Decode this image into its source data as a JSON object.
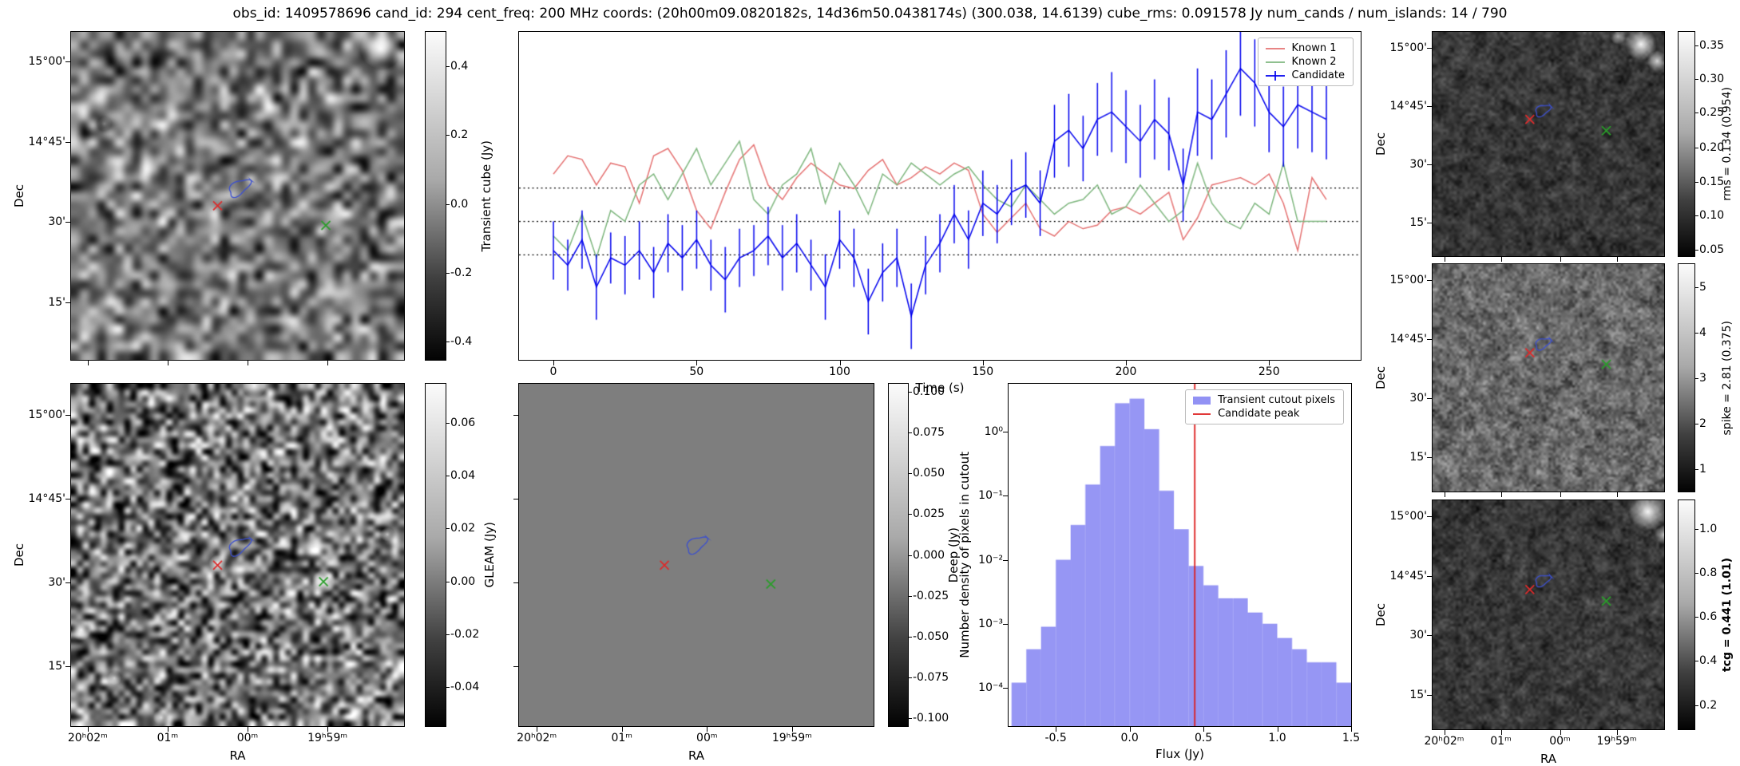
{
  "title": "obs_id: 1409578696 cand_id: 294 cent_freq: 200 MHz coords: (20h00m09.0820182s, 14d36m50.0438174s) (300.038, 14.6139) cube_rms: 0.091578 Jy num_cands / num_islands: 14 / 790",
  "axis": {
    "ra_label": "RA",
    "dec_label": "Dec",
    "ra_ticks": [
      "20ʰ02ᵐ",
      "01ᵐ",
      "00ᵐ",
      "19ʰ59ᵐ"
    ],
    "dec_ticks": [
      "15°00'",
      "14°45'",
      "30'",
      "15'"
    ]
  },
  "markers": {
    "red": "#dd2b2b",
    "green": "#2a9e2a",
    "contour": "#3b4fd0"
  },
  "colorbars": {
    "transient": {
      "label": "Transient cube (Jy)",
      "ticks": [
        "0.4",
        "0.2",
        "0.0",
        "-0.2",
        "-0.4"
      ]
    },
    "gleam": {
      "label": "GLEAM (Jy)",
      "ticks": [
        "0.06",
        "0.04",
        "0.02",
        "0.00",
        "-0.02",
        "-0.04"
      ]
    },
    "deep": {
      "label": "Deep (Jy)",
      "ticks": [
        "0.100",
        "0.075",
        "0.050",
        "0.025",
        "0.000",
        "-0.025",
        "-0.050",
        "-0.075",
        "-0.100"
      ]
    },
    "rms": {
      "label": "rms = 0.134 (0.954)",
      "ticks": [
        "0.35",
        "0.30",
        "0.25",
        "0.20",
        "0.15",
        "0.10",
        "0.05"
      ]
    },
    "spike": {
      "label": "spike = 2.81 (0.375)",
      "ticks": [
        "5",
        "4",
        "3",
        "2",
        "1"
      ]
    },
    "tcg": {
      "label": "tcg = 0.441 (1.01)",
      "ticks": [
        "1.0",
        "0.8",
        "0.6",
        "0.4",
        "0.2"
      ]
    }
  },
  "chart_data": [
    {
      "type": "line",
      "title": "",
      "xlabel": "Time (s)",
      "ylabel": "",
      "xlim": [
        -12,
        282
      ],
      "ylim": [
        -0.38,
        0.52
      ],
      "xticks": [
        0,
        50,
        100,
        150,
        200,
        250
      ],
      "xtick_labels": [
        "0",
        "50",
        "100",
        "150",
        "200",
        "250"
      ],
      "hlines": [
        0.091578,
        0.0,
        -0.091578
      ],
      "legend_position": "upper right",
      "x": [
        0,
        5,
        10,
        15,
        20,
        25,
        30,
        35,
        40,
        45,
        50,
        55,
        60,
        65,
        70,
        75,
        80,
        85,
        90,
        95,
        100,
        105,
        110,
        115,
        120,
        125,
        130,
        135,
        140,
        145,
        150,
        155,
        160,
        165,
        170,
        175,
        180,
        185,
        190,
        195,
        200,
        205,
        210,
        215,
        220,
        225,
        230,
        235,
        240,
        245,
        250,
        255,
        260,
        265,
        270
      ],
      "series": [
        {
          "name": "Known 1",
          "color": "#e57373",
          "values": [
            0.13,
            0.18,
            0.17,
            0.1,
            0.16,
            0.15,
            0.05,
            0.18,
            0.2,
            0.14,
            0.03,
            -0.02,
            0.08,
            0.17,
            0.21,
            0.1,
            0.06,
            0.12,
            0.16,
            0.13,
            0.1,
            0.09,
            0.14,
            0.17,
            0.1,
            0.12,
            0.15,
            0.13,
            0.16,
            0.14,
            0.02,
            -0.03,
            0.01,
            0.05,
            -0.02,
            -0.04,
            0.0,
            -0.02,
            -0.01,
            0.03,
            0.04,
            0.02,
            0.05,
            0.08,
            -0.05,
            0.01,
            0.1,
            0.11,
            0.12,
            0.1,
            0.13,
            0.05,
            -0.08,
            0.12,
            0.06
          ]
        },
        {
          "name": "Known 2",
          "color": "#7fb77f",
          "values": [
            -0.04,
            -0.08,
            0.02,
            -0.1,
            0.03,
            0.0,
            0.1,
            0.13,
            0.06,
            0.13,
            0.2,
            0.1,
            0.16,
            0.22,
            0.06,
            0.02,
            0.1,
            0.13,
            0.2,
            0.05,
            0.16,
            0.1,
            0.02,
            0.13,
            0.1,
            0.16,
            0.13,
            0.1,
            0.13,
            0.15,
            0.1,
            0.06,
            0.04,
            0.1,
            0.06,
            0.02,
            0.05,
            0.06,
            0.1,
            0.02,
            0.04,
            0.1,
            0.05,
            0.0,
            0.03,
            0.16,
            0.05,
            0.0,
            -0.02,
            0.05,
            0.02,
            0.16,
            0.0,
            0.0,
            0.0
          ]
        },
        {
          "name": "Candidate",
          "color": "#0000ee",
          "values": [
            -0.08,
            -0.12,
            -0.05,
            -0.18,
            -0.1,
            -0.12,
            -0.08,
            -0.14,
            -0.06,
            -0.1,
            -0.05,
            -0.12,
            -0.16,
            -0.1,
            -0.08,
            -0.04,
            -0.1,
            -0.06,
            -0.12,
            -0.18,
            -0.05,
            -0.1,
            -0.22,
            -0.14,
            -0.1,
            -0.26,
            -0.12,
            -0.06,
            0.02,
            -0.05,
            0.05,
            0.02,
            0.08,
            0.1,
            0.05,
            0.22,
            0.25,
            0.2,
            0.28,
            0.3,
            0.26,
            0.22,
            0.28,
            0.24,
            0.1,
            0.3,
            0.28,
            0.35,
            0.42,
            0.38,
            0.3,
            0.26,
            0.32,
            0.3,
            0.28
          ],
          "errors": [
            0.08,
            0.07,
            0.08,
            0.09,
            0.07,
            0.08,
            0.08,
            0.07,
            0.08,
            0.09,
            0.08,
            0.07,
            0.09,
            0.08,
            0.07,
            0.08,
            0.09,
            0.08,
            0.07,
            0.09,
            0.08,
            0.08,
            0.09,
            0.08,
            0.08,
            0.09,
            0.08,
            0.08,
            0.08,
            0.08,
            0.09,
            0.08,
            0.09,
            0.09,
            0.09,
            0.1,
            0.1,
            0.09,
            0.1,
            0.11,
            0.1,
            0.1,
            0.11,
            0.1,
            0.1,
            0.12,
            0.11,
            0.12,
            0.13,
            0.12,
            0.11,
            0.11,
            0.12,
            0.11,
            0.11
          ]
        }
      ]
    },
    {
      "type": "bar",
      "title": "",
      "xlabel": "Flux (Jy)",
      "ylabel": "Number density of pixels in cutout",
      "series_label": "Transient cutout pixels",
      "bar_color": "#6e6ef0",
      "yscale": "log",
      "xlim": [
        -0.82,
        1.5
      ],
      "ylog_lim": [
        -4.6,
        0.75
      ],
      "xticks": [
        -0.5,
        0.0,
        0.5,
        1.0,
        1.5
      ],
      "xtick_labels": [
        "-0.5",
        "0.0",
        "0.5",
        "1.0",
        "1.5"
      ],
      "ytick_log": [
        0,
        -1,
        -2,
        -3,
        -4
      ],
      "ytick_labels": [
        "10⁰",
        "10⁻¹",
        "10⁻²",
        "10⁻³",
        "10⁻⁴"
      ],
      "bin_edges": [
        -0.8,
        -0.7,
        -0.6,
        -0.5,
        -0.4,
        -0.3,
        -0.2,
        -0.1,
        0.0,
        0.1,
        0.2,
        0.3,
        0.4,
        0.5,
        0.6,
        0.7,
        0.8,
        0.9,
        1.0,
        1.1,
        1.2,
        1.3,
        1.4,
        1.5
      ],
      "values": [
        0.00012,
        0.0004,
        0.0009,
        0.01,
        0.035,
        0.15,
        0.6,
        2.8,
        3.3,
        1.1,
        0.12,
        0.03,
        0.008,
        0.004,
        0.0025,
        0.0025,
        0.0015,
        0.001,
        0.0006,
        0.0004,
        0.00025,
        0.00025,
        0.00012
      ],
      "vline": {
        "x": 0.441,
        "label": "Candidate peak",
        "color": "#dd1c1c"
      }
    }
  ]
}
